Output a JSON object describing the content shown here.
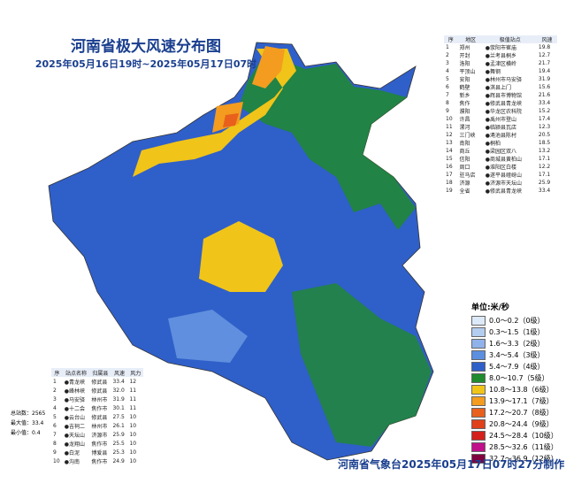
{
  "header": {
    "title": "河南省极大风速分布图",
    "subtitle": "2025年05月16日19时~2025年05月17日07时"
  },
  "region_table": {
    "headers": [
      "序",
      "地区",
      "极值站点",
      "风速"
    ],
    "rows": [
      [
        "1",
        "郑州",
        "●荥阳市崔庙",
        "19.8"
      ],
      [
        "2",
        "开封",
        "●兰考县桐乡",
        "12.7"
      ],
      [
        "3",
        "洛阳",
        "●孟津区横岭",
        "21.7"
      ],
      [
        "4",
        "平顶山",
        "●舞钢",
        "19.4"
      ],
      [
        "5",
        "安阳",
        "●林州市马安驿",
        "31.9"
      ],
      [
        "6",
        "鹤壁",
        "●淇县上门",
        "15.6"
      ],
      [
        "7",
        "新乡",
        "●辉县市博物馆",
        "21.6"
      ],
      [
        "8",
        "焦作",
        "●修武县青龙峡",
        "33.4"
      ],
      [
        "9",
        "濮阳",
        "●华龙区农科院",
        "15.2"
      ],
      [
        "10",
        "许昌",
        "●禹州市登山",
        "17.4"
      ],
      [
        "11",
        "漯河",
        "●临颍县瓦店",
        "12.3"
      ],
      [
        "12",
        "三门峡",
        "●渑池县陈村",
        "20.5"
      ],
      [
        "13",
        "南阳",
        "●桐柏",
        "18.5"
      ],
      [
        "14",
        "商丘",
        "●梁园区双八",
        "13.2"
      ],
      [
        "15",
        "信阳",
        "●商城县黄柏山",
        "17.1"
      ],
      [
        "16",
        "周口",
        "●淮阳区白楼",
        "12.2"
      ],
      [
        "17",
        "驻马店",
        "●遂平县嵖岈山",
        "17.1"
      ],
      [
        "18",
        "济源",
        "●济源市天坛山",
        "25.9"
      ],
      [
        "19",
        "全省",
        "●修武县青龙峡",
        "33.4"
      ]
    ]
  },
  "station_table": {
    "headers": [
      "序",
      "站点名称",
      "归属县",
      "风速",
      "风力"
    ],
    "rows": [
      [
        "1",
        "●青龙峡",
        "修武县",
        "33.4",
        "12"
      ],
      [
        "2",
        "●峰林峡",
        "修武县",
        "32.0",
        "11"
      ],
      [
        "3",
        "●马安驿",
        "林州市",
        "31.9",
        "11"
      ],
      [
        "4",
        "●十二会",
        "焦作市",
        "30.1",
        "11"
      ],
      [
        "5",
        "●云台山",
        "修武县",
        "27.5",
        "10"
      ],
      [
        "6",
        "●吉祠二",
        "林州市",
        "26.1",
        "10"
      ],
      [
        "7",
        "●天坛山",
        "济源市",
        "25.9",
        "10"
      ],
      [
        "8",
        "●龙翔山",
        "焦作市",
        "25.5",
        "10"
      ],
      [
        "9",
        "●白泥",
        "博爱县",
        "25.3",
        "10"
      ],
      [
        "10",
        "●沟南",
        "焦作市",
        "24.9",
        "10"
      ]
    ]
  },
  "stats": [
    "总站数：2565",
    "最大值：33.4",
    "最小值：0.4"
  ],
  "legend": {
    "unit": "单位:米/秒",
    "items": [
      {
        "label": "0.0～0.2（0级）",
        "color": "#dce9f8"
      },
      {
        "label": "0.3～1.5（1级）",
        "color": "#b3cdf0"
      },
      {
        "label": "1.6～3.3（2级）",
        "color": "#8fb2ea"
      },
      {
        "label": "3.4～5.4（3级）",
        "color": "#5d8fe0"
      },
      {
        "label": "5.4～7.9（4级）",
        "color": "#2f5fc9"
      },
      {
        "label": "8.0～10.7（5级）",
        "color": "#1f8a2e"
      },
      {
        "label": "10.8～13.8（6级）",
        "color": "#f0c419"
      },
      {
        "label": "13.9～17.1（7级）",
        "color": "#f39c1f"
      },
      {
        "label": "17.2～20.7（8级）",
        "color": "#e8601c"
      },
      {
        "label": "20.8～24.4（9级）",
        "color": "#e0401a"
      },
      {
        "label": "24.5～28.4（10级）",
        "color": "#d4201a"
      },
      {
        "label": "28.5～32.6（11级）",
        "color": "#c0108a"
      },
      {
        "label": "32.7～36.9（12级）",
        "color": "#800040"
      }
    ]
  },
  "footer": "河南省气象台2025年05月17日07时27分制作"
}
